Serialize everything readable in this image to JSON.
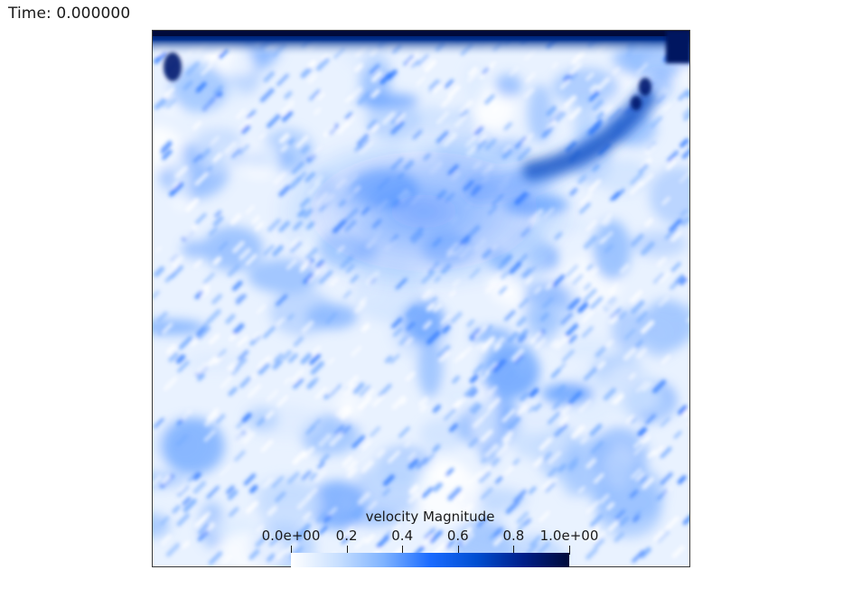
{
  "time_annotation": "Time: 0.000000",
  "colorbar": {
    "title": "velocity Magnitude",
    "tick_labels": [
      "0.0e+00",
      "0.2",
      "0.4",
      "0.6",
      "0.8",
      "1.0e+00"
    ],
    "tick_values": [
      0.0,
      0.2,
      0.4,
      0.6,
      0.8,
      1.0
    ],
    "range": [
      0.0,
      1.0
    ],
    "colormap": [
      "#ffffff",
      "#c9e0ff",
      "#7fb3ff",
      "#1a6bff",
      "#004ed1",
      "#001f8a",
      "#000a3a"
    ]
  },
  "field": {
    "name": "velocity Magnitude",
    "background_color": "#eef5ff",
    "lid_color": "#001a6e",
    "vortex_color": "#0a3fa8"
  }
}
